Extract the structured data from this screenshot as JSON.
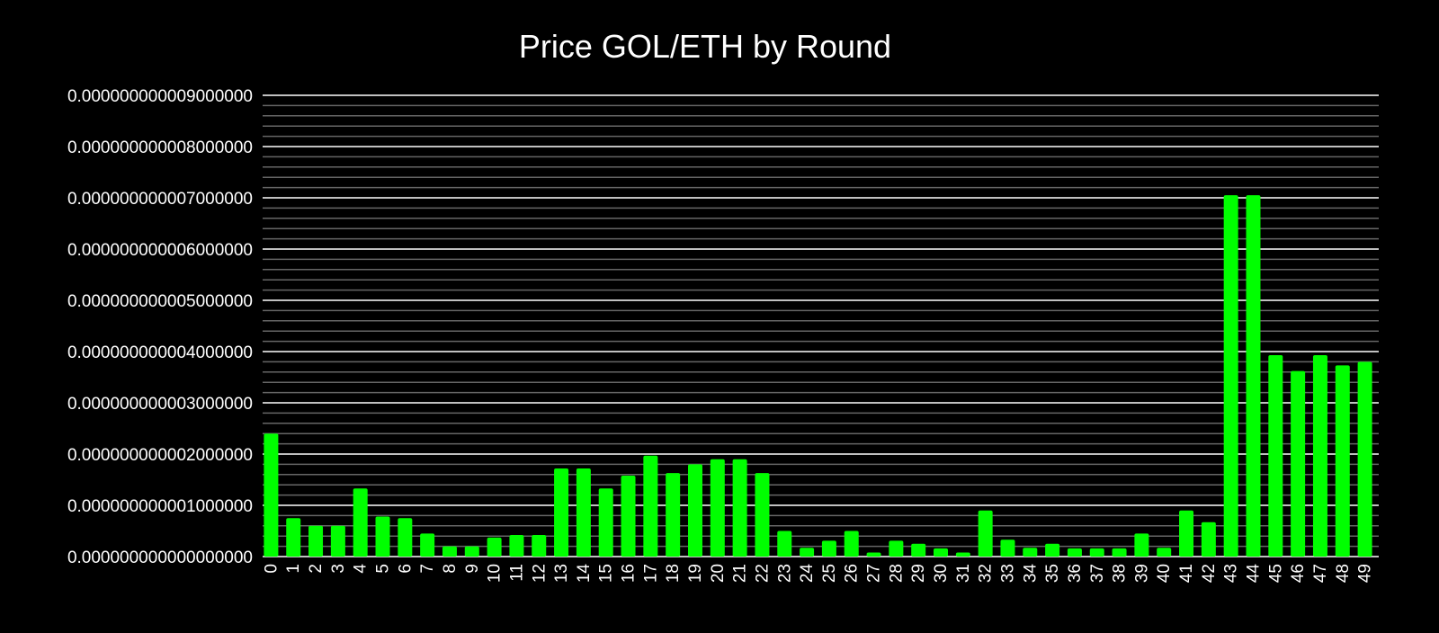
{
  "chart_data": {
    "type": "bar",
    "title": "Price GOL/ETH by Round",
    "xlabel": "",
    "ylabel": "",
    "ylim": [
      0,
      9e-12
    ],
    "grid": true,
    "bar_color": "#00ff00",
    "background_color": "#000000",
    "major_grid_color": "#ffffff",
    "minor_grid_color": "#666666",
    "text_color": "#ffffff",
    "y_ticks": [
      {
        "value": 0,
        "label": "0.000000000000000000"
      },
      {
        "value": 1e-12,
        "label": "0.000000000001000000"
      },
      {
        "value": 2e-12,
        "label": "0.000000000002000000"
      },
      {
        "value": 3e-12,
        "label": "0.000000000003000000"
      },
      {
        "value": 4e-12,
        "label": "0.000000000004000000"
      },
      {
        "value": 5e-12,
        "label": "0.000000000005000000"
      },
      {
        "value": 6e-12,
        "label": "0.000000000006000000"
      },
      {
        "value": 7e-12,
        "label": "0.000000000007000000"
      },
      {
        "value": 8e-12,
        "label": "0.000000000008000000"
      },
      {
        "value": 9e-12,
        "label": "0.000000000009000000"
      }
    ],
    "minor_ticks_per_major": 5,
    "categories": [
      "0",
      "1",
      "2",
      "3",
      "4",
      "5",
      "6",
      "7",
      "8",
      "9",
      "10",
      "11",
      "12",
      "13",
      "14",
      "15",
      "16",
      "17",
      "18",
      "19",
      "20",
      "21",
      "22",
      "23",
      "24",
      "25",
      "26",
      "27",
      "28",
      "29",
      "30",
      "31",
      "32",
      "33",
      "34",
      "35",
      "36",
      "37",
      "38",
      "39",
      "40",
      "41",
      "42",
      "43",
      "44",
      "45",
      "46",
      "47",
      "48",
      "49"
    ],
    "values": [
      2.4e-12,
      7.5e-13,
      6e-13,
      6e-13,
      1.33e-12,
      7.8e-13,
      7.5e-13,
      4.5e-13,
      2e-13,
      2e-13,
      3.7e-13,
      4.2e-13,
      4.2e-13,
      1.72e-12,
      1.72e-12,
      1.33e-12,
      1.58e-12,
      1.97e-12,
      1.63e-12,
      1.8e-12,
      1.9e-12,
      1.9e-12,
      1.63e-12,
      5e-13,
      1.7e-13,
      3.1e-13,
      5e-13,
      8e-14,
      3.1e-13,
      2.5e-13,
      1.6e-13,
      8e-14,
      9e-13,
      3.3e-13,
      1.7e-13,
      2.5e-13,
      1.6e-13,
      1.6e-13,
      1.6e-13,
      4.5e-13,
      1.7e-13,
      9e-13,
      6.7e-13,
      7.05e-12,
      7.05e-12,
      3.93e-12,
      3.62e-12,
      3.93e-12,
      3.73e-12,
      3.8e-12
    ]
  }
}
